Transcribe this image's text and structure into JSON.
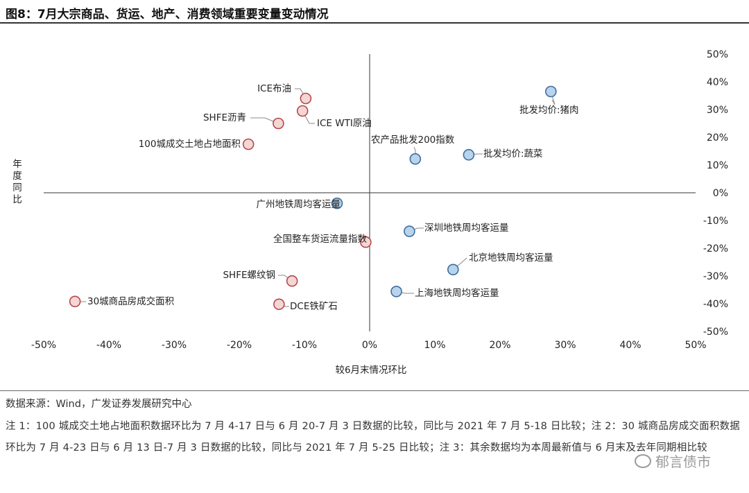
{
  "title": "图8：7月大宗商品、货运、地产、消费领域重要变量变动情况",
  "colors": {
    "red_fill": "#f4d6d4",
    "red_stroke": "#b5484a",
    "blue_fill": "#b8d3ec",
    "blue_stroke": "#3e6d9c"
  },
  "chart_data": {
    "type": "scatter",
    "xlabel": "较6月末情况环比",
    "ylabel": "年度同比",
    "xlim": [
      -50,
      50
    ],
    "ylim": [
      -50,
      50
    ],
    "x_ticks": [
      "-50%",
      "-40%",
      "-30%",
      "-20%",
      "-10%",
      "0%",
      "10%",
      "20%",
      "30%",
      "40%",
      "50%"
    ],
    "y_ticks": [
      "50%",
      "40%",
      "30%",
      "20%",
      "10%",
      "0%",
      "-10%",
      "-20%",
      "-30%",
      "-40%",
      "-50%"
    ],
    "points": [
      {
        "label": "ICE布油",
        "x": -9.8,
        "y": 34,
        "color": "red"
      },
      {
        "label": "ICE WTI原油",
        "x": -10.3,
        "y": 29.5,
        "color": "red"
      },
      {
        "label": "SHFE沥青",
        "x": -14,
        "y": 25,
        "color": "red"
      },
      {
        "label": "100城成交土地占地面积",
        "x": -18.6,
        "y": 17.5,
        "color": "red"
      },
      {
        "label": "全国整车货运流量指数",
        "x": -0.6,
        "y": -17.8,
        "color": "red"
      },
      {
        "label": "SHFE螺纹钢",
        "x": -11.9,
        "y": -31.8,
        "color": "red"
      },
      {
        "label": "30城商品房成交面积",
        "x": -45.2,
        "y": -39.2,
        "color": "red"
      },
      {
        "label": "DCE铁矿石",
        "x": -13.9,
        "y": -40.2,
        "color": "red"
      },
      {
        "label": "批发均价:猪肉",
        "x": 27.8,
        "y": 36.5,
        "color": "blue"
      },
      {
        "label": "农产品批发200指数",
        "x": 7,
        "y": 12.2,
        "color": "blue"
      },
      {
        "label": "批发均价:蔬菜",
        "x": 15.2,
        "y": 13.7,
        "color": "blue"
      },
      {
        "label": "广州地铁周均客运量",
        "x": -5,
        "y": -3.8,
        "color": "blue"
      },
      {
        "label": "深圳地铁周均客运量",
        "x": 6.1,
        "y": -13.9,
        "color": "blue"
      },
      {
        "label": "北京地铁周均客运量",
        "x": 12.8,
        "y": -27.7,
        "color": "blue"
      },
      {
        "label": "上海地铁周均客运量",
        "x": 4.1,
        "y": -35.6,
        "color": "blue"
      }
    ]
  },
  "source": "数据来源：Wind，广发证券发展研究中心",
  "notes": "注 1：100 城成交土地占地面积数据环比为 7 月 4-17 日与 6 月 20-7 月 3 日数据的比较，同比与 2021 年 7 月 5-18 日比较；注 2：30 城商品房成交面积数据环比为 7 月 4-23 日与 6 月 13 日-7 月 3 日数据的比较，同比与 2021 年 7 月 5-25 日比较；注 3：其余数据均为本周最新值与 6 月末及去年同期相比较",
  "watermark": "郁言债市"
}
